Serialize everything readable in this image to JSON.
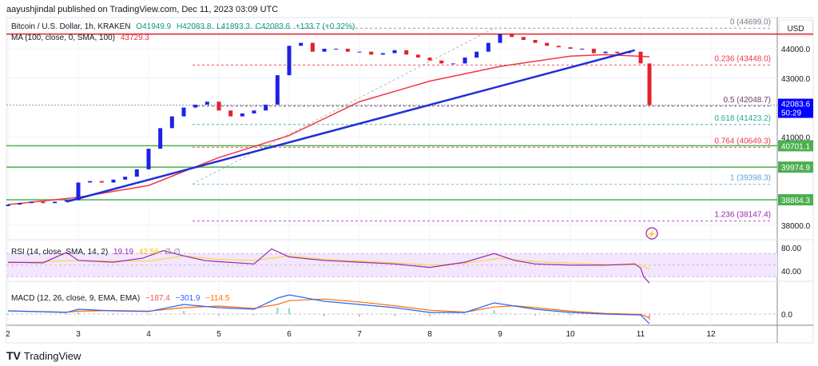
{
  "publisher": "aayushjindal published on TradingView.com, Dec 11, 2023 03:09 UTC",
  "legend": {
    "symbol": "Bitcoin / U.S. Dollar, 1h, KRAKEN",
    "open": "O41949.9",
    "high": "H42083.8",
    "low": "L41893.3",
    "close": "C42083.6",
    "change": "+133.7 (+0.32%)",
    "ma_label": "MA (100, close, 0, SMA, 100)",
    "ma_value": "43729.3",
    "rsi_label": "RSI (14, close, SMA, 14, 2)",
    "rsi_value": "19.19",
    "rsi_sma_value": "42.56",
    "rsi_extra": "∅ ∅",
    "macd_label": "MACD (12, 26, close, 9, EMA, EMA)",
    "macd_hist": "−187.4",
    "macd_value": "−301.9",
    "macd_signal": "−114.5"
  },
  "footer": {
    "brand": "TradingView"
  },
  "colors": {
    "up": "#1e22e6",
    "down": "#e3222c",
    "ma": "#f23645",
    "trend": "#1f2fd6",
    "support": "#4caf50",
    "resistance": "#e3222c",
    "rsi": "#9c27b0",
    "rsi_sma": "#f5d94a",
    "macd": "#2962ff",
    "signal": "#ff6d00",
    "price_badge": "#0000ff"
  },
  "chart_data": {
    "type": "candlestick",
    "title": "Bitcoin / U.S. Dollar, 1h, KRAKEN",
    "currency": "USD",
    "y_ticks": [
      "44000.0",
      "43000.0",
      "41000.0",
      "38000.0"
    ],
    "x_ticks": [
      "2",
      "3",
      "4",
      "5",
      "6",
      "7",
      "8",
      "9",
      "10",
      "11",
      "12"
    ],
    "ylim": [
      37500,
      45000
    ],
    "closes": [
      [
        "Dec 2 00:00",
        38700
      ],
      [
        "Dec 2 04:00",
        38750
      ],
      [
        "Dec 2 08:00",
        38800
      ],
      [
        "Dec 2 12:00",
        38750
      ],
      [
        "Dec 2 16:00",
        38800
      ],
      [
        "Dec 2 20:00",
        38850
      ],
      [
        "Dec 3 00:00",
        39450
      ],
      [
        "Dec 3 04:00",
        39500
      ],
      [
        "Dec 3 08:00",
        39450
      ],
      [
        "Dec 3 12:00",
        39550
      ],
      [
        "Dec 3 16:00",
        39650
      ],
      [
        "Dec 3 20:00",
        39900
      ],
      [
        "Dec 4 00:00",
        40600
      ],
      [
        "Dec 4 04:00",
        41300
      ],
      [
        "Dec 4 08:00",
        41700
      ],
      [
        "Dec 4 12:00",
        42000
      ],
      [
        "Dec 4 16:00",
        42100
      ],
      [
        "Dec 4 20:00",
        42200
      ],
      [
        "Dec 5 00:00",
        41900
      ],
      [
        "Dec 5 04:00",
        41700
      ],
      [
        "Dec 5 08:00",
        41800
      ],
      [
        "Dec 5 12:00",
        41900
      ],
      [
        "Dec 5 16:00",
        42100
      ],
      [
        "Dec 5 20:00",
        43100
      ],
      [
        "Dec 6 00:00",
        44100
      ],
      [
        "Dec 6 04:00",
        44200
      ],
      [
        "Dec 6 08:00",
        43900
      ],
      [
        "Dec 6 12:00",
        44000
      ],
      [
        "Dec 6 16:00",
        44000
      ],
      [
        "Dec 6 20:00",
        43900
      ],
      [
        "Dec 7 00:00",
        43900
      ],
      [
        "Dec 7 04:00",
        43800
      ],
      [
        "Dec 7 08:00",
        43850
      ],
      [
        "Dec 7 12:00",
        43950
      ],
      [
        "Dec 7 16:00",
        43800
      ],
      [
        "Dec 7 20:00",
        43700
      ],
      [
        "Dec 8 00:00",
        43600
      ],
      [
        "Dec 8 04:00",
        43500
      ],
      [
        "Dec 8 08:00",
        43500
      ],
      [
        "Dec 8 12:00",
        43700
      ],
      [
        "Dec 8 16:00",
        43900
      ],
      [
        "Dec 8 20:00",
        44200
      ],
      [
        "Dec 9 00:00",
        44500
      ],
      [
        "Dec 9 04:00",
        44400
      ],
      [
        "Dec 9 08:00",
        44300
      ],
      [
        "Dec 9 12:00",
        44200
      ],
      [
        "Dec 9 16:00",
        44100
      ],
      [
        "Dec 9 20:00",
        44050
      ],
      [
        "Dec 10 00:00",
        44000
      ],
      [
        "Dec 10 04:00",
        44000
      ],
      [
        "Dec 10 08:00",
        43850
      ],
      [
        "Dec 10 12:00",
        43900
      ],
      [
        "Dec 10 16:00",
        43850
      ],
      [
        "Dec 10 20:00",
        43900
      ],
      [
        "Dec 11 00:00",
        43500
      ],
      [
        "Dec 11 03:00",
        42083.6
      ]
    ],
    "ma100": [
      [
        "Dec 2 00:00",
        38700
      ],
      [
        "Dec 3 00:00",
        38950
      ],
      [
        "Dec 4 00:00",
        39350
      ],
      [
        "Dec 5 00:00",
        40300
      ],
      [
        "Dec 6 00:00",
        41050
      ],
      [
        "Dec 7 00:00",
        42200
      ],
      [
        "Dec 8 00:00",
        42900
      ],
      [
        "Dec 9 00:00",
        43400
      ],
      [
        "Dec 10 00:00",
        43750
      ],
      [
        "Dec 10 12:00",
        43800
      ],
      [
        "Dec 11 03:00",
        43729.3
      ]
    ],
    "trendline": [
      [
        "Dec 2 20:00",
        38800
      ],
      [
        "Dec 10 22:00",
        43950
      ]
    ],
    "fib_anchor": [
      [
        "Dec 4 15:00",
        39398.3
      ],
      [
        "Dec 8 22:00",
        44699.0
      ]
    ],
    "fib_levels": [
      {
        "label": "0 (44699.0)",
        "ratio": 0,
        "price": 44699.0,
        "color": "#787b86"
      },
      {
        "label": "0.236 (43448.0)",
        "ratio": 0.236,
        "price": 43448.0,
        "color": "#f23645"
      },
      {
        "label": "0.5 (42048.7)",
        "ratio": 0.5,
        "price": 42048.7,
        "color": "#6d3c5a"
      },
      {
        "label": "0.618 (41423.2)",
        "ratio": 0.618,
        "price": 41423.2,
        "color": "#22ab94"
      },
      {
        "label": "0.764 (40649.3)",
        "ratio": 0.764,
        "price": 40649.3,
        "color": "#f23645"
      },
      {
        "label": "1 (39398.3)",
        "ratio": 1,
        "price": 39398.3,
        "color": "#5aa6d8"
      },
      {
        "label": "1.236 (38147.4)",
        "ratio": 1.236,
        "price": 38147.4,
        "color": "#9c27b0"
      }
    ],
    "resistance": 44500,
    "supports": [
      {
        "price": 40701.1,
        "label": "40701.1"
      },
      {
        "price": 39974.9,
        "label": "39974.9"
      },
      {
        "price": 38864.3,
        "label": "38864.3"
      }
    ],
    "last_price": {
      "label": "42083.6",
      "countdown": "50:29"
    },
    "rsi": {
      "ticks": [
        "80.00",
        "40.00"
      ],
      "band": [
        30,
        70
      ],
      "values": [
        [
          "Dec 2 00:00",
          55
        ],
        [
          "Dec 2 12:00",
          54
        ],
        [
          "Dec 2 20:00",
          72
        ],
        [
          "Dec 3 00:00",
          58
        ],
        [
          "Dec 3 12:00",
          55
        ],
        [
          "Dec 3 22:00",
          62
        ],
        [
          "Dec 4 05:00",
          75
        ],
        [
          "Dec 4 12:00",
          66
        ],
        [
          "Dec 4 19:00",
          58
        ],
        [
          "Dec 5 00:00",
          56
        ],
        [
          "Dec 5 12:00",
          52
        ],
        [
          "Dec 5 18:00",
          78
        ],
        [
          "Dec 6 00:00",
          64
        ],
        [
          "Dec 6 12:00",
          58
        ],
        [
          "Dec 7 00:00",
          55
        ],
        [
          "Dec 7 12:00",
          52
        ],
        [
          "Dec 8 00:00",
          46
        ],
        [
          "Dec 8 12:00",
          55
        ],
        [
          "Dec 8 22:00",
          70
        ],
        [
          "Dec 9 05:00",
          58
        ],
        [
          "Dec 9 12:00",
          52
        ],
        [
          "Dec 10 00:00",
          50
        ],
        [
          "Dec 10 12:00",
          50
        ],
        [
          "Dec 10 22:00",
          52
        ],
        [
          "Dec 11 00:00",
          45
        ],
        [
          "Dec 11 01:00",
          30
        ],
        [
          "Dec 11 03:00",
          19.19
        ]
      ],
      "sma": [
        [
          "Dec 2 00:00",
          54
        ],
        [
          "Dec 3 00:00",
          58
        ],
        [
          "Dec 4 00:00",
          57
        ],
        [
          "Dec 4 12:00",
          66
        ],
        [
          "Dec 5 00:00",
          60
        ],
        [
          "Dec 5 12:00",
          58
        ],
        [
          "Dec 6 00:00",
          66
        ],
        [
          "Dec 6 12:00",
          60
        ],
        [
          "Dec 7 12:00",
          54
        ],
        [
          "Dec 8 00:00",
          50
        ],
        [
          "Dec 8 12:00",
          53
        ],
        [
          "Dec 9 00:00",
          62
        ],
        [
          "Dec 9 12:00",
          56
        ],
        [
          "Dec 10 12:00",
          51
        ],
        [
          "Dec 11 00:00",
          50
        ],
        [
          "Dec 11 03:00",
          42.56
        ]
      ]
    },
    "macd": {
      "ticks": [
        "0.0"
      ],
      "macd": [
        [
          "Dec 2 00:00",
          100
        ],
        [
          "Dec 2 20:00",
          50
        ],
        [
          "Dec 3 00:00",
          150
        ],
        [
          "Dec 3 12:00",
          100
        ],
        [
          "Dec 4 00:00",
          80
        ],
        [
          "Dec 4 12:00",
          300
        ],
        [
          "Dec 5 00:00",
          200
        ],
        [
          "Dec 5 12:00",
          150
        ],
        [
          "Dec 5 20:00",
          500
        ],
        [
          "Dec 6 00:00",
          600
        ],
        [
          "Dec 6 12:00",
          400
        ],
        [
          "Dec 7 00:00",
          300
        ],
        [
          "Dec 7 12:00",
          200
        ],
        [
          "Dec 8 00:00",
          50
        ],
        [
          "Dec 8 12:00",
          50
        ],
        [
          "Dec 8 22:00",
          350
        ],
        [
          "Dec 9 05:00",
          250
        ],
        [
          "Dec 9 12:00",
          150
        ],
        [
          "Dec 10 00:00",
          50
        ],
        [
          "Dec 10 12:00",
          0
        ],
        [
          "Dec 11 00:00",
          -30
        ],
        [
          "Dec 11 03:00",
          -301.9
        ]
      ],
      "signal": [
        [
          "Dec 2 00:00",
          100
        ],
        [
          "Dec 2 20:00",
          60
        ],
        [
          "Dec 3 00:00",
          90
        ],
        [
          "Dec 3 12:00",
          110
        ],
        [
          "Dec 4 00:00",
          90
        ],
        [
          "Dec 4 12:00",
          200
        ],
        [
          "Dec 5 00:00",
          250
        ],
        [
          "Dec 5 12:00",
          180
        ],
        [
          "Dec 5 20:00",
          300
        ],
        [
          "Dec 6 00:00",
          420
        ],
        [
          "Dec 6 12:00",
          470
        ],
        [
          "Dec 7 00:00",
          380
        ],
        [
          "Dec 7 12:00",
          260
        ],
        [
          "Dec 8 00:00",
          120
        ],
        [
          "Dec 8 12:00",
          60
        ],
        [
          "Dec 8 22:00",
          220
        ],
        [
          "Dec 9 05:00",
          260
        ],
        [
          "Dec 9 12:00",
          200
        ],
        [
          "Dec 10 00:00",
          90
        ],
        [
          "Dec 10 12:00",
          20
        ],
        [
          "Dec 11 00:00",
          -10
        ],
        [
          "Dec 11 03:00",
          -114.5
        ]
      ]
    }
  }
}
